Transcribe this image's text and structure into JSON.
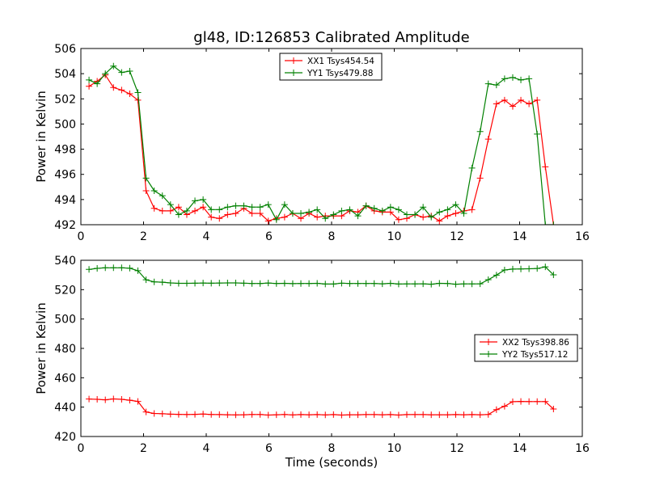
{
  "chart_data": {
    "title": "gl48, ID:126853 Calibrated Amplitude",
    "xlabel": "Time (seconds)",
    "panels": [
      {
        "type": "line",
        "ylabel": "Power in Kelvin",
        "xlim": [
          0,
          16
        ],
        "ylim": [
          492,
          506
        ],
        "xticks": [
          "0",
          "2",
          "4",
          "6",
          "8",
          "10",
          "12",
          "14",
          "16"
        ],
        "yticks": [
          "492",
          "494",
          "496",
          "498",
          "500",
          "502",
          "504",
          "506"
        ],
        "legend_position": "top-center",
        "x": [
          0.26,
          0.52,
          0.78,
          1.04,
          1.3,
          1.56,
          1.82,
          2.08,
          2.34,
          2.6,
          2.86,
          3.12,
          3.38,
          3.64,
          3.9,
          4.16,
          4.42,
          4.68,
          4.94,
          5.2,
          5.46,
          5.72,
          5.98,
          6.24,
          6.5,
          6.76,
          7.02,
          7.28,
          7.54,
          7.8,
          8.06,
          8.32,
          8.58,
          8.84,
          9.1,
          9.36,
          9.62,
          9.88,
          10.14,
          10.4,
          10.66,
          10.92,
          11.18,
          11.44,
          11.7,
          11.96,
          12.22,
          12.48,
          12.74,
          13.0,
          13.26,
          13.52,
          13.78,
          14.04,
          14.3,
          14.56,
          14.82,
          15.08
        ],
        "series": [
          {
            "name": "XX1 Tsys454.54",
            "color": "#ff0000",
            "values": [
              503.0,
              503.4,
              503.9,
              502.9,
              502.7,
              502.4,
              501.9,
              494.7,
              493.3,
              493.1,
              493.1,
              493.4,
              492.8,
              493.1,
              493.4,
              492.6,
              492.5,
              492.8,
              492.9,
              493.3,
              492.9,
              492.9,
              492.3,
              492.5,
              492.6,
              492.9,
              492.5,
              492.9,
              492.6,
              492.7,
              492.7,
              492.7,
              493.1,
              493.0,
              493.5,
              493.1,
              493.0,
              493.0,
              492.4,
              492.5,
              492.8,
              492.6,
              492.7,
              492.3,
              492.7,
              492.9,
              493.1,
              493.2,
              495.7,
              498.8,
              501.6,
              501.9,
              501.4,
              501.9,
              501.6,
              501.9,
              496.6,
              492.0
            ]
          },
          {
            "name": "YY1 Tsys479.88",
            "color": "#008000",
            "values": [
              503.5,
              503.2,
              504.0,
              504.6,
              504.1,
              504.2,
              502.5,
              495.7,
              494.7,
              494.3,
              493.6,
              492.8,
              493.1,
              493.9,
              494.0,
              493.2,
              493.2,
              493.4,
              493.5,
              493.5,
              493.4,
              493.4,
              493.6,
              492.4,
              493.6,
              492.9,
              492.9,
              493.0,
              493.2,
              492.5,
              492.8,
              493.1,
              493.2,
              492.7,
              493.5,
              493.3,
              493.1,
              493.4,
              493.2,
              492.8,
              492.8,
              493.4,
              492.6,
              493.0,
              493.2,
              493.6,
              492.9,
              496.5,
              499.4,
              503.2,
              503.1,
              503.6,
              503.7,
              503.5,
              503.6,
              499.2,
              492.0,
              492.0
            ]
          }
        ]
      },
      {
        "type": "line",
        "ylabel": "Power in Kelvin",
        "xlim": [
          0,
          16
        ],
        "ylim": [
          420,
          540
        ],
        "xticks": [
          "0",
          "2",
          "4",
          "6",
          "8",
          "10",
          "12",
          "14",
          "16"
        ],
        "yticks": [
          "420",
          "440",
          "460",
          "480",
          "500",
          "520",
          "540"
        ],
        "legend_position": "center-right",
        "x": [
          0.26,
          0.52,
          0.78,
          1.04,
          1.3,
          1.56,
          1.82,
          2.08,
          2.34,
          2.6,
          2.86,
          3.12,
          3.38,
          3.64,
          3.9,
          4.16,
          4.42,
          4.68,
          4.94,
          5.2,
          5.46,
          5.72,
          5.98,
          6.24,
          6.5,
          6.76,
          7.02,
          7.28,
          7.54,
          7.8,
          8.06,
          8.32,
          8.58,
          8.84,
          9.1,
          9.36,
          9.62,
          9.88,
          10.14,
          10.4,
          10.66,
          10.92,
          11.18,
          11.44,
          11.7,
          11.96,
          12.22,
          12.48,
          12.74,
          13.0,
          13.26,
          13.52,
          13.78,
          14.04,
          14.3,
          14.56,
          14.82,
          15.08
        ],
        "series": [
          {
            "name": "XX2 Tsys398.86",
            "color": "#ff0000",
            "values": [
              445.5,
              445.3,
              445.0,
              445.6,
              445.3,
              444.7,
              443.9,
              436.7,
              435.7,
              435.5,
              435.2,
              435.1,
              435.0,
              435.1,
              435.3,
              435.0,
              434.9,
              434.8,
              434.7,
              434.8,
              435.0,
              435.0,
              434.6,
              434.8,
              435.0,
              434.7,
              434.9,
              434.8,
              434.9,
              434.7,
              434.9,
              434.6,
              434.8,
              434.8,
              434.9,
              434.9,
              434.8,
              434.9,
              434.6,
              434.9,
              434.9,
              434.9,
              434.8,
              434.8,
              434.8,
              434.9,
              434.8,
              434.9,
              434.8,
              435.0,
              438.3,
              440.6,
              443.7,
              443.9,
              443.8,
              443.8,
              443.8,
              438.7
            ]
          },
          {
            "name": "YY2 Tsys517.12",
            "color": "#008000",
            "values": [
              533.8,
              534.5,
              534.9,
              534.9,
              534.9,
              534.6,
              532.9,
              526.7,
              525.3,
              525.1,
              524.6,
              524.3,
              524.3,
              524.4,
              524.5,
              524.4,
              524.5,
              524.6,
              524.6,
              524.4,
              524.2,
              524.2,
              524.5,
              524.2,
              524.3,
              524.1,
              524.2,
              524.2,
              524.3,
              523.8,
              523.8,
              524.4,
              524.2,
              524.2,
              524.2,
              524.2,
              524.0,
              524.3,
              523.8,
              523.9,
              523.9,
              524.0,
              523.7,
              524.3,
              524.2,
              523.7,
              523.9,
              523.9,
              524.0,
              526.8,
              529.9,
              533.4,
              534.0,
              534.1,
              534.2,
              534.4,
              535.5,
              530.1
            ]
          }
        ]
      }
    ]
  }
}
